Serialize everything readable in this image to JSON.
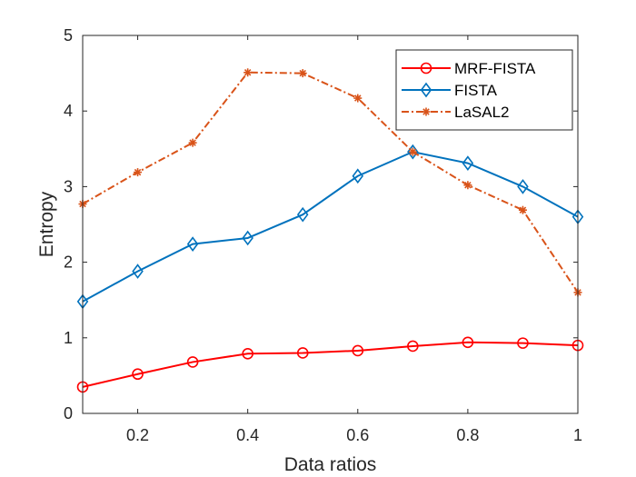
{
  "chart_data": {
    "type": "line",
    "title": "",
    "xlabel": "Data ratios",
    "ylabel": "Entropy",
    "xlim": [
      0.1,
      1
    ],
    "ylim": [
      0,
      5
    ],
    "xticks": [
      0.2,
      0.4,
      0.6,
      0.8,
      1
    ],
    "xtick_labels": [
      "0.2",
      "0.4",
      "0.6",
      "0.8",
      "1"
    ],
    "yticks": [
      0,
      1,
      2,
      3,
      4,
      5
    ],
    "ytick_labels": [
      "0",
      "1",
      "2",
      "3",
      "4",
      "5"
    ],
    "grid": false,
    "legend_position": "top-right",
    "x": [
      0.1,
      0.2,
      0.3,
      0.4,
      0.5,
      0.6,
      0.7,
      0.8,
      0.9,
      1.0
    ],
    "series": [
      {
        "name": "MRF-FISTA",
        "color": "#ff0000",
        "marker": "circle",
        "line_style": "solid",
        "values": [
          0.35,
          0.52,
          0.68,
          0.79,
          0.8,
          0.83,
          0.89,
          0.94,
          0.93,
          0.9
        ]
      },
      {
        "name": "FISTA",
        "color": "#0072bd",
        "marker": "diamond",
        "line_style": "solid",
        "values": [
          1.48,
          1.88,
          2.24,
          2.32,
          2.63,
          3.14,
          3.46,
          3.31,
          3.0,
          2.6
        ]
      },
      {
        "name": "LaSAL2",
        "color": "#d95319",
        "marker": "asterisk",
        "line_style": "dashdot",
        "values": [
          2.77,
          3.19,
          3.58,
          4.51,
          4.5,
          4.17,
          3.46,
          3.02,
          2.69,
          1.6
        ]
      }
    ]
  }
}
